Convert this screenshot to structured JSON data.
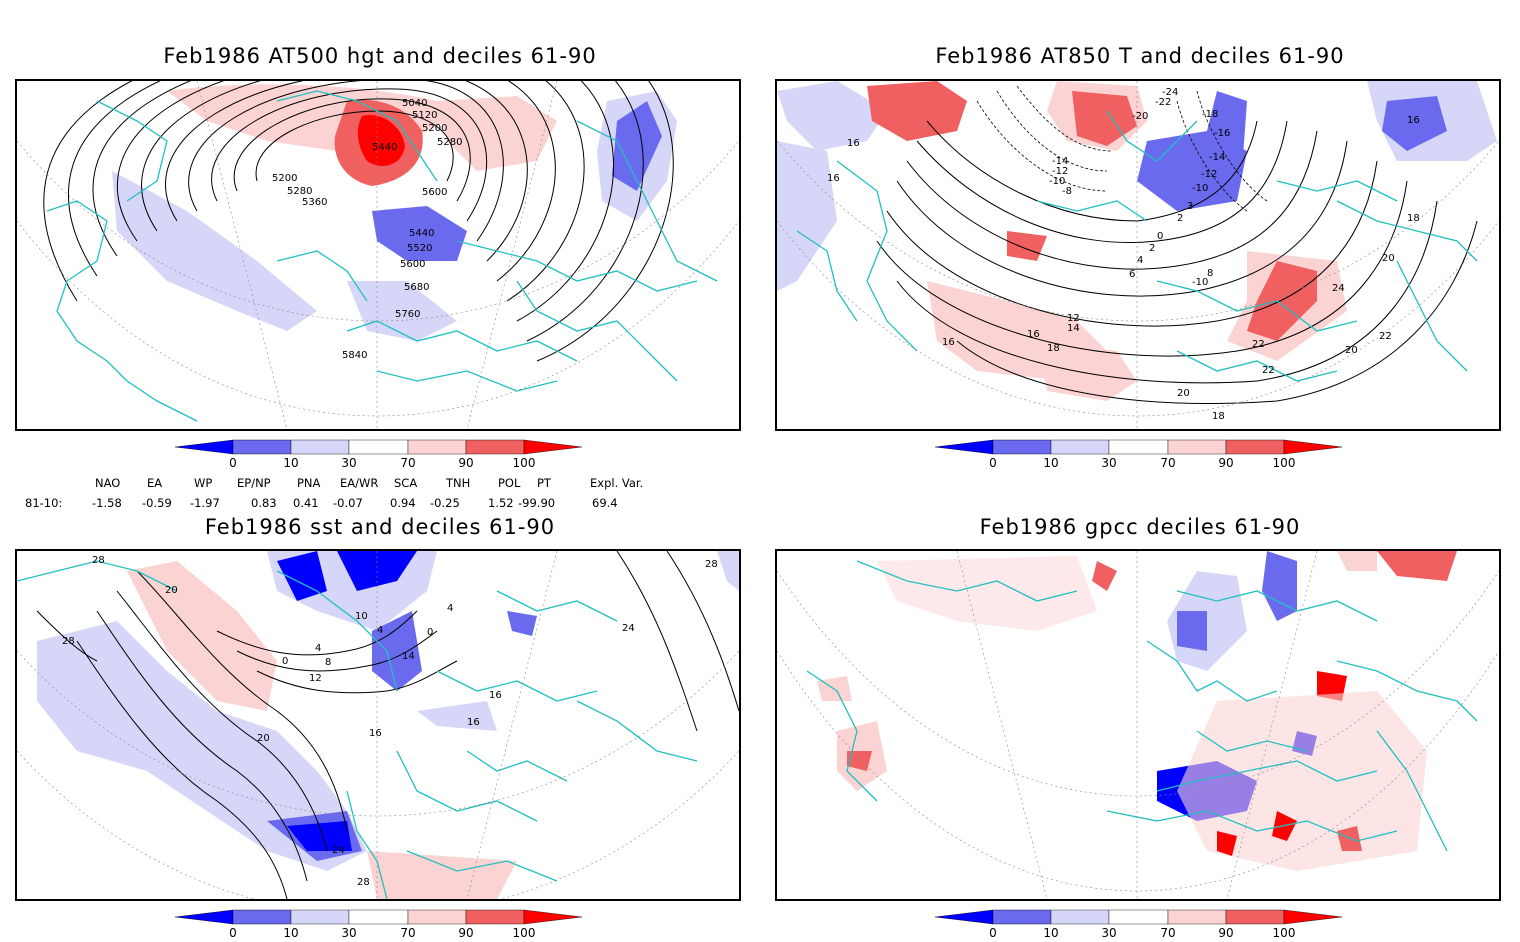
{
  "panels": [
    {
      "title": "Feb1986 AT500 hgt and deciles 61-90",
      "contour_labels": [
        "5040",
        "5120",
        "5200",
        "5280",
        "5440",
        "5200",
        "5280",
        "5360",
        "5600",
        "5440",
        "5520",
        "5600",
        "5680",
        "5760",
        "5840"
      ]
    },
    {
      "title": "Feb1986 AT850 T and deciles 61-90",
      "contour_labels": [
        "-24",
        "-22",
        "-20",
        "-18",
        "-16",
        "-14",
        "-12",
        "-10",
        "-8",
        "-14",
        "-12",
        "-10",
        "3",
        "2",
        "0",
        "2",
        "4",
        "6",
        "8",
        "-10",
        "12",
        "14",
        "16",
        "16",
        "16",
        "18",
        "20",
        "22",
        "22",
        "24",
        "22",
        "20",
        "18",
        "20",
        "16",
        "16",
        "18",
        "16"
      ]
    },
    {
      "title": "Feb1986 sst and deciles 61-90",
      "contour_labels": [
        "28",
        "28",
        "28",
        "20",
        "10",
        "4",
        "0",
        "0",
        "4",
        "8",
        "12",
        "16",
        "16",
        "20",
        "24",
        "28",
        "24",
        "16",
        "14",
        "4"
      ]
    },
    {
      "title": "Feb1986 gpcc deciles 61-90",
      "contour_labels": []
    }
  ],
  "colorbar": {
    "ticks": [
      "0",
      "10",
      "30",
      "70",
      "90",
      "100"
    ],
    "colors": [
      "#0000ff",
      "#6a6aef",
      "#d6d6f8",
      "#ffffff",
      "#fbd3d3",
      "#f06060",
      "#ff0000"
    ]
  },
  "indices": {
    "row_label": "81-10:",
    "columns": [
      {
        "name": "NAO",
        "value": "-1.58"
      },
      {
        "name": "EA",
        "value": "-0.59"
      },
      {
        "name": "WP",
        "value": "-1.97"
      },
      {
        "name": "EP/NP",
        "value": "0.83"
      },
      {
        "name": "PNA",
        "value": "0.41"
      },
      {
        "name": "EA/WR",
        "value": "-0.07"
      },
      {
        "name": "SCA",
        "value": "0.94"
      },
      {
        "name": "TNH",
        "value": "-0.25"
      },
      {
        "name": "POL",
        "value": "1.52"
      },
      {
        "name": "PT",
        "value": "-99.90"
      },
      {
        "name": "Expl. Var.",
        "value": "69.4"
      }
    ]
  }
}
